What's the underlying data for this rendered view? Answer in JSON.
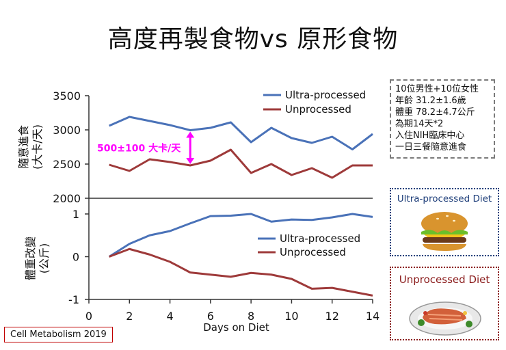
{
  "title": "高度再製食物vs 原形食物",
  "info_box": {
    "lines": [
      "10位男性+10位女性",
      "年齡 31.2±1.6歲",
      "體重 78.2±4.7公斤",
      "為期14天*2",
      "入住NIH臨床中心",
      "一日三餐隨意進食"
    ]
  },
  "diet_boxes": {
    "ultra_processed": {
      "label": "Ultra-processed Diet",
      "icon": "hamburger-icon"
    },
    "unprocessed": {
      "label": "Unprocessed Diet",
      "icon": "salmon-dish-icon"
    }
  },
  "citation": "Cell Metabolism 2019",
  "colors": {
    "ultra": "#4a72b8",
    "unprocessed": "#9e3a3a",
    "annotation": "#ff00ff"
  },
  "chart_data": [
    {
      "type": "line",
      "ylabel": "隨意進食\n(大卡/天)",
      "ylim": [
        2000,
        3500
      ],
      "yticks": [
        2000,
        2500,
        3000,
        3500
      ],
      "x": [
        1,
        2,
        3,
        4,
        5,
        6,
        7,
        8,
        9,
        10,
        11,
        12,
        13,
        14
      ],
      "series": [
        {
          "name": "Ultra-processed",
          "values": [
            3060,
            3190,
            3130,
            3070,
            2995,
            3030,
            3110,
            2820,
            3030,
            2880,
            2810,
            2900,
            2715,
            2940
          ]
        },
        {
          "name": "Unprocessed",
          "values": [
            2490,
            2400,
            2570,
            2530,
            2480,
            2550,
            2710,
            2370,
            2500,
            2340,
            2440,
            2300,
            2480,
            2480
          ]
        }
      ],
      "legend_position": "top-right",
      "annotation": {
        "text": "500±100 大卡/天",
        "x": 5,
        "y_from": 2995,
        "y_to": 2480
      }
    },
    {
      "type": "line",
      "xlabel": "Days on Diet",
      "ylabel": "體重改變\n(公斤)",
      "ylim": [
        -1,
        1
      ],
      "yticks": [
        -1,
        0,
        1
      ],
      "xlim": [
        0,
        14
      ],
      "xticks": [
        0,
        2,
        4,
        6,
        8,
        10,
        12,
        14
      ],
      "x": [
        1,
        2,
        3,
        4,
        5,
        6,
        7,
        8,
        9,
        10,
        11,
        12,
        13,
        14
      ],
      "series": [
        {
          "name": "Ultra-processed",
          "values": [
            0.0,
            0.3,
            0.5,
            0.6,
            0.78,
            0.95,
            0.96,
            1.0,
            0.82,
            0.87,
            0.86,
            0.92,
            1.0,
            0.93
          ]
        },
        {
          "name": "Unprocessed",
          "values": [
            0.0,
            0.18,
            0.05,
            -0.12,
            -0.37,
            -0.42,
            -0.47,
            -0.38,
            -0.42,
            -0.52,
            -0.75,
            -0.73,
            -0.82,
            -0.91
          ]
        }
      ],
      "legend_position": "center-right"
    }
  ]
}
